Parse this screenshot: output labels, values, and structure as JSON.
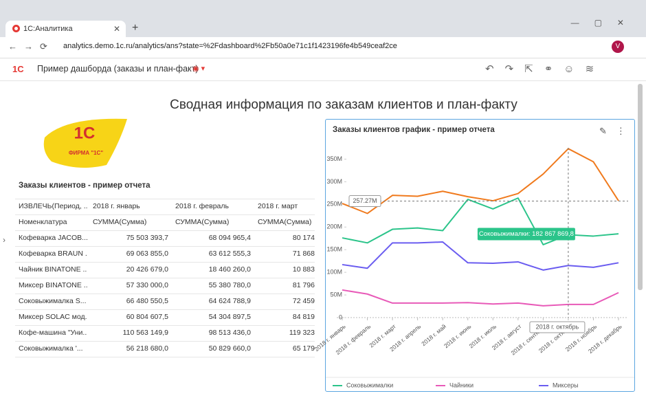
{
  "browser": {
    "tab_title": "1С:Аналитика",
    "url": "analytics.demo.1c.ru/analytics/ans?state=%2Fdashboard%2Fb50a0e71c1f1423196fe4b549ceaf2ce",
    "avatar": "V"
  },
  "app": {
    "logo": "1С",
    "title": "Пример дашборда (заказы и план-факт)"
  },
  "dashboard": {
    "title": "Сводная информация по заказам клиентов и план-факту",
    "logo_mark": "1С",
    "logo_caption": "ФИРМА \"1С\""
  },
  "table": {
    "title": "Заказы клиентов - пример отчета",
    "header": [
      [
        "ИЗВЛЕЧЬ(Период, ...",
        "2018 г. январь",
        "2018 г. февраль",
        "2018 г. март"
      ],
      [
        "Номенклатура",
        "СУММА(Сумма)",
        "СУММА(Сумма)",
        "СУММА(Сумма)"
      ]
    ],
    "rows": [
      [
        "Кофеварка JACOB...",
        "75 503 393,7",
        "68 094 965,4",
        "80 174"
      ],
      [
        "Кофеварка BRAUN ...",
        "69 063 855,0",
        "63 612 555,3",
        "71 868"
      ],
      [
        "Чайник BINATONE ...",
        "20 426 679,0",
        "18 460 260,0",
        "10 883"
      ],
      [
        "Миксер BINATONE ...",
        "57 330 000,0",
        "55 380 780,0",
        "81 796"
      ],
      [
        "Соковыжималка S...",
        "66 480 550,5",
        "64 624 788,9",
        "72 459"
      ],
      [
        "Миксер SOLAC мод...",
        "60 804 607,5",
        "54 304 897,5",
        "84 819"
      ],
      [
        "Кофе-машина \"Уни...",
        "110 563 149,9",
        "98 513 436,0",
        "119 323"
      ],
      [
        "Соковыжималка '...",
        "56 218 680,0",
        "50 829 660,0",
        "65 179"
      ]
    ]
  },
  "chart_data": {
    "type": "line",
    "title": "Заказы клиентов график - пример отчета",
    "categories": [
      "2018 г. январь",
      "2018 г. февраль",
      "2018 г. март",
      "2018 г. апрель",
      "2018 г. май",
      "2018 г. июнь",
      "2018 г. июль",
      "2018 г. август",
      "2018 г. сентябрь",
      "2018 г. октябрь",
      "2018 г. ноябрь",
      "2018 г. декабрь"
    ],
    "series": [
      {
        "color": "#f07a1d",
        "values": [
          252000000,
          230000000,
          270000000,
          268000000,
          279000000,
          267000000,
          258000000,
          274000000,
          317000000,
          373000000,
          344000000,
          258000000
        ]
      },
      {
        "name": "Соковыжималки",
        "color": "#2bc48a",
        "values": [
          176000000,
          165000000,
          195000000,
          198000000,
          192000000,
          261000000,
          240000000,
          264000000,
          161000000,
          182867869.8,
          180000000,
          185000000
        ]
      },
      {
        "name": "Чайники",
        "color": "#e85ab8",
        "values": [
          61000000,
          52000000,
          32000000,
          32000000,
          32000000,
          33000000,
          30000000,
          32000000,
          26000000,
          29000000,
          29000000,
          55000000
        ]
      },
      {
        "name": "Миксеры",
        "color": "#6a5cf0",
        "values": [
          117000000,
          109000000,
          165000000,
          165000000,
          167000000,
          121000000,
          120000000,
          123000000,
          105000000,
          115000000,
          111000000,
          121000000
        ]
      }
    ],
    "ylim": [
      0,
      375000000
    ],
    "yticks": [
      0,
      {
        "value": 50000000,
        "label": "50M"
      },
      {
        "value": 100000000,
        "label": "100M"
      },
      {
        "value": 150000000,
        "label": "150M"
      },
      {
        "value": 200000000,
        "label": "200M"
      },
      {
        "value": 250000000,
        "label": "250M"
      },
      {
        "value": 300000000,
        "label": "300M"
      },
      {
        "value": 350000000,
        "label": "350M"
      }
    ],
    "grid": false,
    "crosshair_y": {
      "value": 257270000,
      "label": "257.27M"
    },
    "crosshair_x": "2018 г. октябрь",
    "tooltip": "Соковыжималки: 182 867 869,8"
  }
}
